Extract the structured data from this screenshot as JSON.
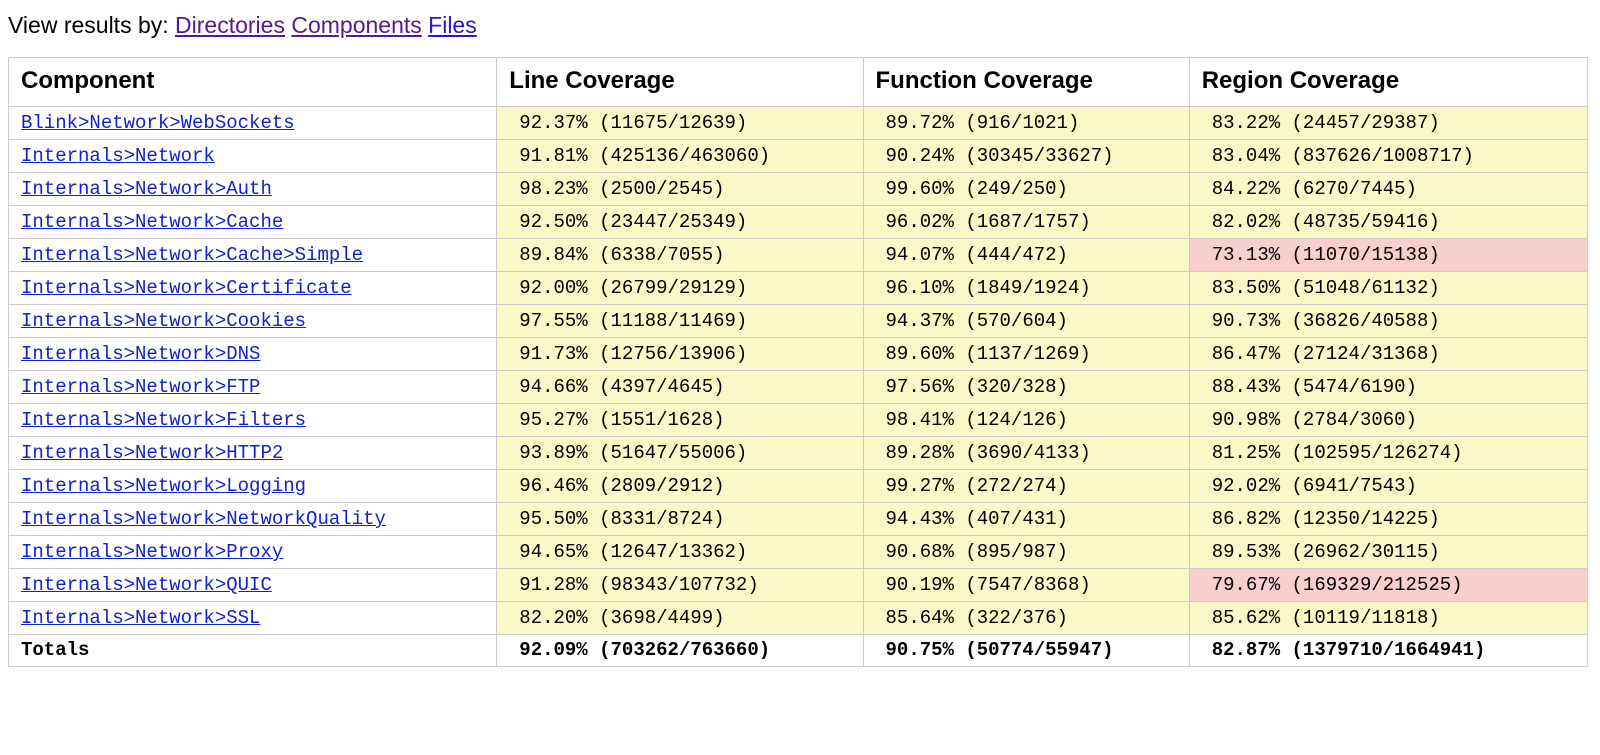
{
  "colors": {
    "yellow": "#fbf8c7",
    "red": "#f9cece",
    "white": "#ffffff"
  },
  "viewBy": {
    "label": "View results by: ",
    "links": [
      {
        "text": "Directories",
        "visited": true
      },
      {
        "text": "Components",
        "visited": true
      },
      {
        "text": "Files",
        "visited": false
      }
    ]
  },
  "headers": [
    "Component",
    "Line Coverage",
    "Function Coverage",
    "Region Coverage"
  ],
  "rows": [
    {
      "name": "Blink>Network>WebSockets",
      "line": {
        "pct": "92.37%",
        "num": "11675",
        "den": "12639",
        "bg": "yellow"
      },
      "func": {
        "pct": "89.72%",
        "num": "916",
        "den": "1021",
        "bg": "yellow"
      },
      "region": {
        "pct": "83.22%",
        "num": "24457",
        "den": "29387",
        "bg": "yellow"
      }
    },
    {
      "name": "Internals>Network",
      "line": {
        "pct": "91.81%",
        "num": "425136",
        "den": "463060",
        "bg": "yellow"
      },
      "func": {
        "pct": "90.24%",
        "num": "30345",
        "den": "33627",
        "bg": "yellow"
      },
      "region": {
        "pct": "83.04%",
        "num": "837626",
        "den": "1008717",
        "bg": "yellow"
      }
    },
    {
      "name": "Internals>Network>Auth",
      "line": {
        "pct": "98.23%",
        "num": "2500",
        "den": "2545",
        "bg": "yellow"
      },
      "func": {
        "pct": "99.60%",
        "num": "249",
        "den": "250",
        "bg": "yellow"
      },
      "region": {
        "pct": "84.22%",
        "num": "6270",
        "den": "7445",
        "bg": "yellow"
      }
    },
    {
      "name": "Internals>Network>Cache",
      "line": {
        "pct": "92.50%",
        "num": "23447",
        "den": "25349",
        "bg": "yellow"
      },
      "func": {
        "pct": "96.02%",
        "num": "1687",
        "den": "1757",
        "bg": "yellow"
      },
      "region": {
        "pct": "82.02%",
        "num": "48735",
        "den": "59416",
        "bg": "yellow"
      }
    },
    {
      "name": "Internals>Network>Cache>Simple",
      "line": {
        "pct": "89.84%",
        "num": "6338",
        "den": "7055",
        "bg": "yellow"
      },
      "func": {
        "pct": "94.07%",
        "num": "444",
        "den": "472",
        "bg": "yellow"
      },
      "region": {
        "pct": "73.13%",
        "num": "11070",
        "den": "15138",
        "bg": "red"
      }
    },
    {
      "name": "Internals>Network>Certificate",
      "line": {
        "pct": "92.00%",
        "num": "26799",
        "den": "29129",
        "bg": "yellow"
      },
      "func": {
        "pct": "96.10%",
        "num": "1849",
        "den": "1924",
        "bg": "yellow"
      },
      "region": {
        "pct": "83.50%",
        "num": "51048",
        "den": "61132",
        "bg": "yellow"
      }
    },
    {
      "name": "Internals>Network>Cookies",
      "line": {
        "pct": "97.55%",
        "num": "11188",
        "den": "11469",
        "bg": "yellow"
      },
      "func": {
        "pct": "94.37%",
        "num": "570",
        "den": "604",
        "bg": "yellow"
      },
      "region": {
        "pct": "90.73%",
        "num": "36826",
        "den": "40588",
        "bg": "yellow"
      }
    },
    {
      "name": "Internals>Network>DNS",
      "line": {
        "pct": "91.73%",
        "num": "12756",
        "den": "13906",
        "bg": "yellow"
      },
      "func": {
        "pct": "89.60%",
        "num": "1137",
        "den": "1269",
        "bg": "yellow"
      },
      "region": {
        "pct": "86.47%",
        "num": "27124",
        "den": "31368",
        "bg": "yellow"
      }
    },
    {
      "name": "Internals>Network>FTP",
      "line": {
        "pct": "94.66%",
        "num": "4397",
        "den": "4645",
        "bg": "yellow"
      },
      "func": {
        "pct": "97.56%",
        "num": "320",
        "den": "328",
        "bg": "yellow"
      },
      "region": {
        "pct": "88.43%",
        "num": "5474",
        "den": "6190",
        "bg": "yellow"
      }
    },
    {
      "name": "Internals>Network>Filters",
      "line": {
        "pct": "95.27%",
        "num": "1551",
        "den": "1628",
        "bg": "yellow"
      },
      "func": {
        "pct": "98.41%",
        "num": "124",
        "den": "126",
        "bg": "yellow"
      },
      "region": {
        "pct": "90.98%",
        "num": "2784",
        "den": "3060",
        "bg": "yellow"
      }
    },
    {
      "name": "Internals>Network>HTTP2",
      "line": {
        "pct": "93.89%",
        "num": "51647",
        "den": "55006",
        "bg": "yellow"
      },
      "func": {
        "pct": "89.28%",
        "num": "3690",
        "den": "4133",
        "bg": "yellow"
      },
      "region": {
        "pct": "81.25%",
        "num": "102595",
        "den": "126274",
        "bg": "yellow"
      }
    },
    {
      "name": "Internals>Network>Logging",
      "line": {
        "pct": "96.46%",
        "num": "2809",
        "den": "2912",
        "bg": "yellow"
      },
      "func": {
        "pct": "99.27%",
        "num": "272",
        "den": "274",
        "bg": "yellow"
      },
      "region": {
        "pct": "92.02%",
        "num": "6941",
        "den": "7543",
        "bg": "yellow"
      }
    },
    {
      "name": "Internals>Network>NetworkQuality",
      "line": {
        "pct": "95.50%",
        "num": "8331",
        "den": "8724",
        "bg": "yellow"
      },
      "func": {
        "pct": "94.43%",
        "num": "407",
        "den": "431",
        "bg": "yellow"
      },
      "region": {
        "pct": "86.82%",
        "num": "12350",
        "den": "14225",
        "bg": "yellow"
      }
    },
    {
      "name": "Internals>Network>Proxy",
      "line": {
        "pct": "94.65%",
        "num": "12647",
        "den": "13362",
        "bg": "yellow"
      },
      "func": {
        "pct": "90.68%",
        "num": "895",
        "den": "987",
        "bg": "yellow"
      },
      "region": {
        "pct": "89.53%",
        "num": "26962",
        "den": "30115",
        "bg": "yellow"
      }
    },
    {
      "name": "Internals>Network>QUIC",
      "line": {
        "pct": "91.28%",
        "num": "98343",
        "den": "107732",
        "bg": "yellow"
      },
      "func": {
        "pct": "90.19%",
        "num": "7547",
        "den": "8368",
        "bg": "yellow"
      },
      "region": {
        "pct": "79.67%",
        "num": "169329",
        "den": "212525",
        "bg": "red"
      }
    },
    {
      "name": "Internals>Network>SSL",
      "line": {
        "pct": "82.20%",
        "num": "3698",
        "den": "4499",
        "bg": "yellow"
      },
      "func": {
        "pct": "85.64%",
        "num": "322",
        "den": "376",
        "bg": "yellow"
      },
      "region": {
        "pct": "85.62%",
        "num": "10119",
        "den": "11818",
        "bg": "yellow"
      }
    }
  ],
  "totals": {
    "label": "Totals",
    "line": {
      "pct": "92.09%",
      "num": "703262",
      "den": "763660"
    },
    "func": {
      "pct": "90.75%",
      "num": "50774",
      "den": "55947"
    },
    "region": {
      "pct": "82.87%",
      "num": "1379710",
      "den": "1664941"
    }
  }
}
